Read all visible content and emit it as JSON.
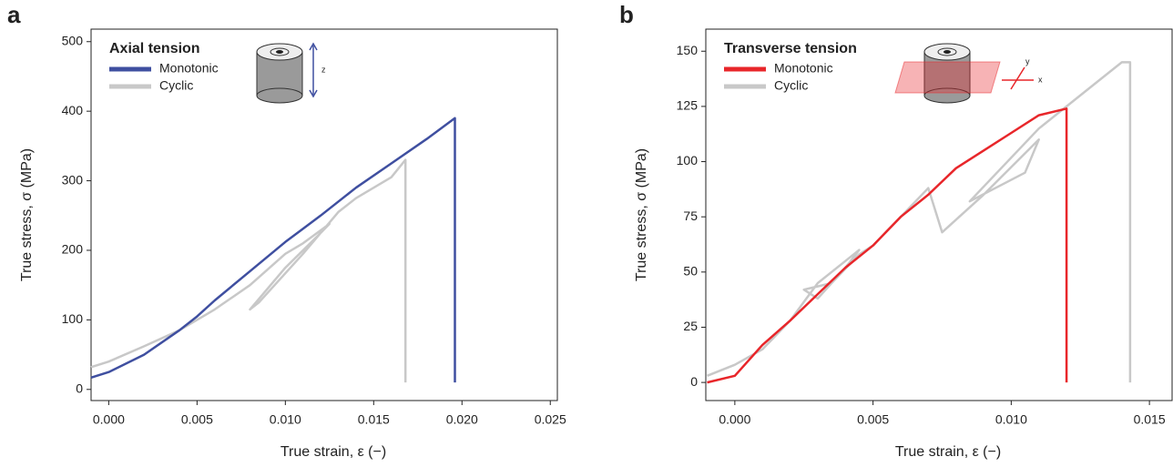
{
  "chart_data": [
    {
      "type": "line",
      "panel_label": "a",
      "legend_title": "Axial tension",
      "x_label": "True strain, ε (−)",
      "y_label": "True stress, σ (MPa)",
      "annotations": [
        "z"
      ],
      "xlim": [
        -0.001,
        0.0254
      ],
      "ylim": [
        -16,
        518
      ],
      "xticks": [
        {
          "value": 0,
          "label": "0.000"
        },
        {
          "value": 0.005,
          "label": "0.005"
        },
        {
          "value": 0.01,
          "label": "0.010"
        },
        {
          "value": 0.015,
          "label": "0.015"
        },
        {
          "value": 0.02,
          "label": "0.020"
        },
        {
          "value": 0.025,
          "label": "0.025"
        }
      ],
      "yticks": [
        0,
        100,
        200,
        300,
        400,
        500
      ],
      "series": [
        {
          "name": "Cyclic",
          "color": "#c8c8c8",
          "x": [
            -0.001,
            0.0,
            0.002,
            0.004,
            0.006,
            0.008,
            0.01,
            0.011,
            0.0125,
            0.012,
            0.01,
            0.008,
            0.0085,
            0.011,
            0.0125,
            0.013,
            0.014,
            0.016,
            0.0168,
            0.0168
          ],
          "values": [
            32,
            40,
            62,
            85,
            115,
            150,
            195,
            210,
            238,
            225,
            175,
            115,
            125,
            195,
            240,
            255,
            275,
            305,
            330,
            10
          ]
        },
        {
          "name": "Monotonic",
          "color": "#3f4fa0",
          "x": [
            -0.001,
            0.0,
            0.002,
            0.004,
            0.005,
            0.006,
            0.008,
            0.01,
            0.012,
            0.014,
            0.016,
            0.018,
            0.0196,
            0.0196
          ],
          "values": [
            17,
            25,
            50,
            85,
            105,
            128,
            170,
            212,
            250,
            290,
            325,
            360,
            390,
            10
          ]
        }
      ]
    },
    {
      "type": "line",
      "panel_label": "b",
      "legend_title": "Transverse tension",
      "x_label": "True strain, ε (−)",
      "y_label": "True stress, σ (MPa)",
      "annotations": [
        "y",
        "x"
      ],
      "xlim": [
        -0.00105,
        0.01582
      ],
      "ylim": [
        -8.2,
        160
      ],
      "xticks": [
        {
          "value": 0,
          "label": "0.000"
        },
        {
          "value": 0.005,
          "label": "0.005"
        },
        {
          "value": 0.01,
          "label": "0.010"
        },
        {
          "value": 0.015,
          "label": "0.015"
        }
      ],
      "yticks": [
        0,
        25,
        50,
        75,
        100,
        125,
        150
      ],
      "series": [
        {
          "name": "Cyclic",
          "color": "#c8c8c8",
          "x": [
            -0.001,
            0.0,
            0.001,
            0.002,
            0.003,
            0.004,
            0.0045,
            0.004,
            0.003,
            0.0025,
            0.0035,
            0.0045,
            0.005,
            0.006,
            0.007,
            0.0075,
            0.009,
            0.011,
            0.0105,
            0.0085,
            0.011,
            0.012,
            0.013,
            0.014,
            0.0143,
            0.0143
          ],
          "values": [
            3,
            8,
            15,
            28,
            45,
            55,
            60,
            52,
            38,
            42,
            45,
            58,
            62,
            75,
            88,
            68,
            85,
            110,
            95,
            82,
            115,
            125,
            135,
            145,
            145,
            0
          ]
        },
        {
          "name": "Monotonic",
          "color": "#e8262a",
          "x": [
            -0.001,
            0.0,
            0.0005,
            0.001,
            0.002,
            0.003,
            0.004,
            0.005,
            0.006,
            0.007,
            0.008,
            0.009,
            0.01,
            0.011,
            0.012,
            0.012
          ],
          "values": [
            0,
            3,
            10,
            17,
            28,
            40,
            52,
            62,
            75,
            85,
            97,
            105,
            113,
            121,
            124,
            0
          ]
        }
      ]
    }
  ]
}
